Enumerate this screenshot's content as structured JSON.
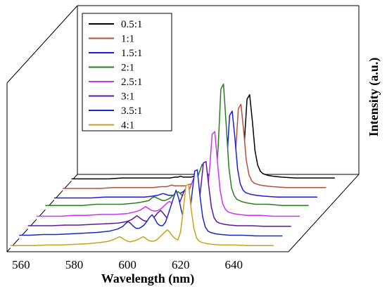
{
  "chart_data": {
    "type": "line",
    "style": "3d-waterfall",
    "xlabel": "Wavelength (nm)",
    "ylabel": "Intensity (a.u.)",
    "x_ticks": [
      560,
      580,
      600,
      620,
      640
    ],
    "xlim": [
      555,
      657
    ],
    "grid": false,
    "legend_position": "top-left",
    "x": [
      556,
      560,
      565,
      570,
      575,
      580,
      585,
      590,
      593,
      595,
      596,
      597,
      598,
      599,
      600,
      601,
      602,
      603,
      604,
      605,
      606,
      607,
      608,
      609,
      610,
      611,
      612,
      613,
      614,
      615,
      616,
      617,
      618,
      619,
      620,
      621,
      622,
      623,
      624,
      625,
      626,
      627,
      628,
      630,
      632,
      635,
      640,
      645,
      650,
      655
    ],
    "series": [
      {
        "name": "0.5:1",
        "color": "#000000",
        "values": [
          0.02,
          0.02,
          0.02,
          0.02,
          0.03,
          0.03,
          0.03,
          0.03,
          0.03,
          0.04,
          0.04,
          0.05,
          0.04,
          0.04,
          0.04,
          0.04,
          0.05,
          0.05,
          0.06,
          0.07,
          0.07,
          0.06,
          0.06,
          0.06,
          0.06,
          0.08,
          0.11,
          0.14,
          0.18,
          0.21,
          0.17,
          0.12,
          0.09,
          0.07,
          0.18,
          0.45,
          0.95,
          1.0,
          0.7,
          0.35,
          0.18,
          0.11,
          0.08,
          0.06,
          0.05,
          0.04,
          0.03,
          0.03,
          0.03,
          0.03
        ]
      },
      {
        "name": "1:1",
        "color": "#b5503a",
        "values": [
          0.02,
          0.02,
          0.02,
          0.02,
          0.03,
          0.03,
          0.03,
          0.03,
          0.04,
          0.04,
          0.05,
          0.06,
          0.05,
          0.05,
          0.05,
          0.05,
          0.05,
          0.06,
          0.07,
          0.08,
          0.09,
          0.08,
          0.07,
          0.07,
          0.07,
          0.09,
          0.13,
          0.16,
          0.2,
          0.23,
          0.2,
          0.14,
          0.1,
          0.08,
          0.18,
          0.45,
          0.95,
          1.0,
          0.7,
          0.35,
          0.18,
          0.11,
          0.08,
          0.06,
          0.05,
          0.04,
          0.03,
          0.03,
          0.03,
          0.03
        ]
      },
      {
        "name": "1.5:1",
        "color": "#1c1ce0",
        "values": [
          0.02,
          0.02,
          0.02,
          0.02,
          0.03,
          0.03,
          0.03,
          0.03,
          0.04,
          0.05,
          0.06,
          0.07,
          0.06,
          0.05,
          0.05,
          0.05,
          0.06,
          0.07,
          0.08,
          0.1,
          0.11,
          0.1,
          0.08,
          0.08,
          0.08,
          0.1,
          0.15,
          0.19,
          0.23,
          0.27,
          0.23,
          0.16,
          0.12,
          0.09,
          0.18,
          0.45,
          0.95,
          1.0,
          0.7,
          0.35,
          0.18,
          0.11,
          0.08,
          0.06,
          0.05,
          0.04,
          0.03,
          0.03,
          0.03,
          0.03
        ]
      },
      {
        "name": "2:1",
        "color": "#2a7d1e",
        "values": [
          0.03,
          0.03,
          0.03,
          0.03,
          0.04,
          0.04,
          0.04,
          0.05,
          0.06,
          0.07,
          0.09,
          0.1,
          0.09,
          0.08,
          0.07,
          0.07,
          0.08,
          0.09,
          0.11,
          0.13,
          0.14,
          0.12,
          0.1,
          0.1,
          0.1,
          0.12,
          0.18,
          0.24,
          0.3,
          0.36,
          0.3,
          0.2,
          0.14,
          0.11,
          0.2,
          0.5,
          0.96,
          1.0,
          0.68,
          0.34,
          0.17,
          0.11,
          0.08,
          0.06,
          0.05,
          0.04,
          0.04,
          0.03,
          0.03,
          0.03
        ]
      },
      {
        "name": "2.5:1",
        "color": "#cc33ee",
        "values": [
          0.03,
          0.03,
          0.03,
          0.04,
          0.04,
          0.05,
          0.05,
          0.06,
          0.08,
          0.1,
          0.12,
          0.14,
          0.12,
          0.1,
          0.09,
          0.09,
          0.1,
          0.12,
          0.15,
          0.18,
          0.2,
          0.17,
          0.13,
          0.12,
          0.12,
          0.15,
          0.22,
          0.3,
          0.38,
          0.46,
          0.38,
          0.26,
          0.17,
          0.13,
          0.22,
          0.55,
          0.97,
          1.0,
          0.66,
          0.33,
          0.17,
          0.11,
          0.08,
          0.06,
          0.05,
          0.04,
          0.04,
          0.03,
          0.03,
          0.03
        ]
      },
      {
        "name": "3:1",
        "color": "#5b1a9e",
        "values": [
          0.04,
          0.04,
          0.04,
          0.05,
          0.05,
          0.06,
          0.07,
          0.08,
          0.1,
          0.13,
          0.16,
          0.19,
          0.16,
          0.13,
          0.11,
          0.11,
          0.13,
          0.15,
          0.19,
          0.24,
          0.27,
          0.22,
          0.17,
          0.15,
          0.15,
          0.19,
          0.28,
          0.38,
          0.48,
          0.58,
          0.48,
          0.33,
          0.22,
          0.16,
          0.25,
          0.6,
          0.98,
          1.0,
          0.64,
          0.32,
          0.16,
          0.1,
          0.08,
          0.06,
          0.05,
          0.04,
          0.04,
          0.03,
          0.03,
          0.03
        ]
      },
      {
        "name": "3.5:1",
        "color": "#1a2abf",
        "values": [
          0.04,
          0.04,
          0.05,
          0.05,
          0.06,
          0.07,
          0.08,
          0.1,
          0.13,
          0.17,
          0.21,
          0.24,
          0.21,
          0.17,
          0.14,
          0.14,
          0.16,
          0.19,
          0.24,
          0.3,
          0.34,
          0.28,
          0.21,
          0.18,
          0.18,
          0.23,
          0.34,
          0.46,
          0.58,
          0.7,
          0.58,
          0.4,
          0.27,
          0.2,
          0.3,
          0.65,
          0.98,
          1.0,
          0.62,
          0.31,
          0.16,
          0.1,
          0.08,
          0.06,
          0.05,
          0.04,
          0.04,
          0.03,
          0.03,
          0.03
        ]
      },
      {
        "name": "4:1",
        "color": "#c8a21a",
        "values": [
          0.03,
          0.03,
          0.03,
          0.04,
          0.04,
          0.05,
          0.06,
          0.08,
          0.1,
          0.13,
          0.15,
          0.17,
          0.15,
          0.12,
          0.1,
          0.09,
          0.1,
          0.11,
          0.13,
          0.15,
          0.17,
          0.14,
          0.11,
          0.1,
          0.1,
          0.12,
          0.16,
          0.2,
          0.24,
          0.28,
          0.24,
          0.18,
          0.14,
          0.12,
          0.25,
          0.6,
          0.98,
          1.0,
          0.6,
          0.3,
          0.15,
          0.1,
          0.08,
          0.06,
          0.05,
          0.04,
          0.04,
          0.03,
          0.03,
          0.03
        ]
      }
    ],
    "peak_heights": [
      122,
      122,
      126,
      178,
      124,
      95,
      97,
      90
    ]
  }
}
